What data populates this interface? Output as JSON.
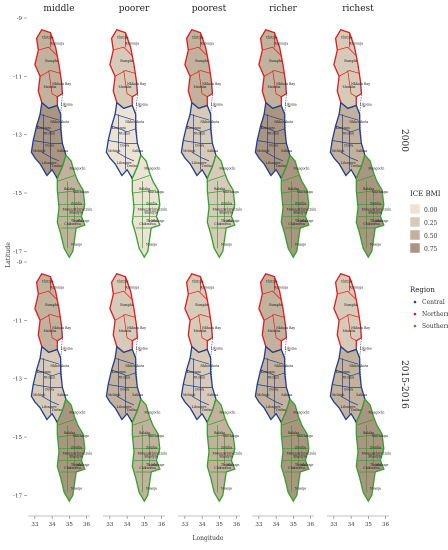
{
  "facet_columns": [
    "middle",
    "poorer",
    "poorest",
    "richer",
    "richest"
  ],
  "facet_rows": [
    "2000",
    "2015-2016"
  ],
  "x_axis": {
    "title": "Longitude",
    "ticks": [
      "33",
      "34",
      "35",
      "36"
    ]
  },
  "y_axis": {
    "title": "Latitude",
    "ticks": [
      "-9",
      "-11",
      "-13",
      "-15",
      "-17"
    ]
  },
  "legend_fill": {
    "title": "ICE BMI",
    "breaks": [
      "0.00",
      "0.25",
      "0.50",
      "0.75"
    ],
    "colors": [
      "#ece3d4",
      "#d7cab8",
      "#c2b19c",
      "#a99580"
    ]
  },
  "legend_region": {
    "title": "Region",
    "entries": [
      "Central",
      "Northern",
      "Southern"
    ],
    "colors": {
      "Central": "#1f3f8f",
      "Northern": "#e31a1c",
      "Southern": "#33a02c"
    }
  },
  "district_labels": {
    "north": [
      "Chitipa",
      "Karonga",
      "Rumphi",
      "Mzimba",
      "Nkhata Bay",
      "Likoma"
    ],
    "central": [
      "Kasungu",
      "Nkhotakota",
      "Ntchisi",
      "Dowa",
      "Mchinji",
      "Salima",
      "Lilongwe",
      "Dedza",
      "Ntcheu"
    ],
    "south": [
      "Mangochi",
      "Machinga",
      "Balaka",
      "Zomba",
      "Chiradzulu",
      "Blantyre",
      "Mwanza",
      "Thyolo",
      "Mulanje",
      "Chikwawa",
      "Nsanje"
    ]
  }
}
